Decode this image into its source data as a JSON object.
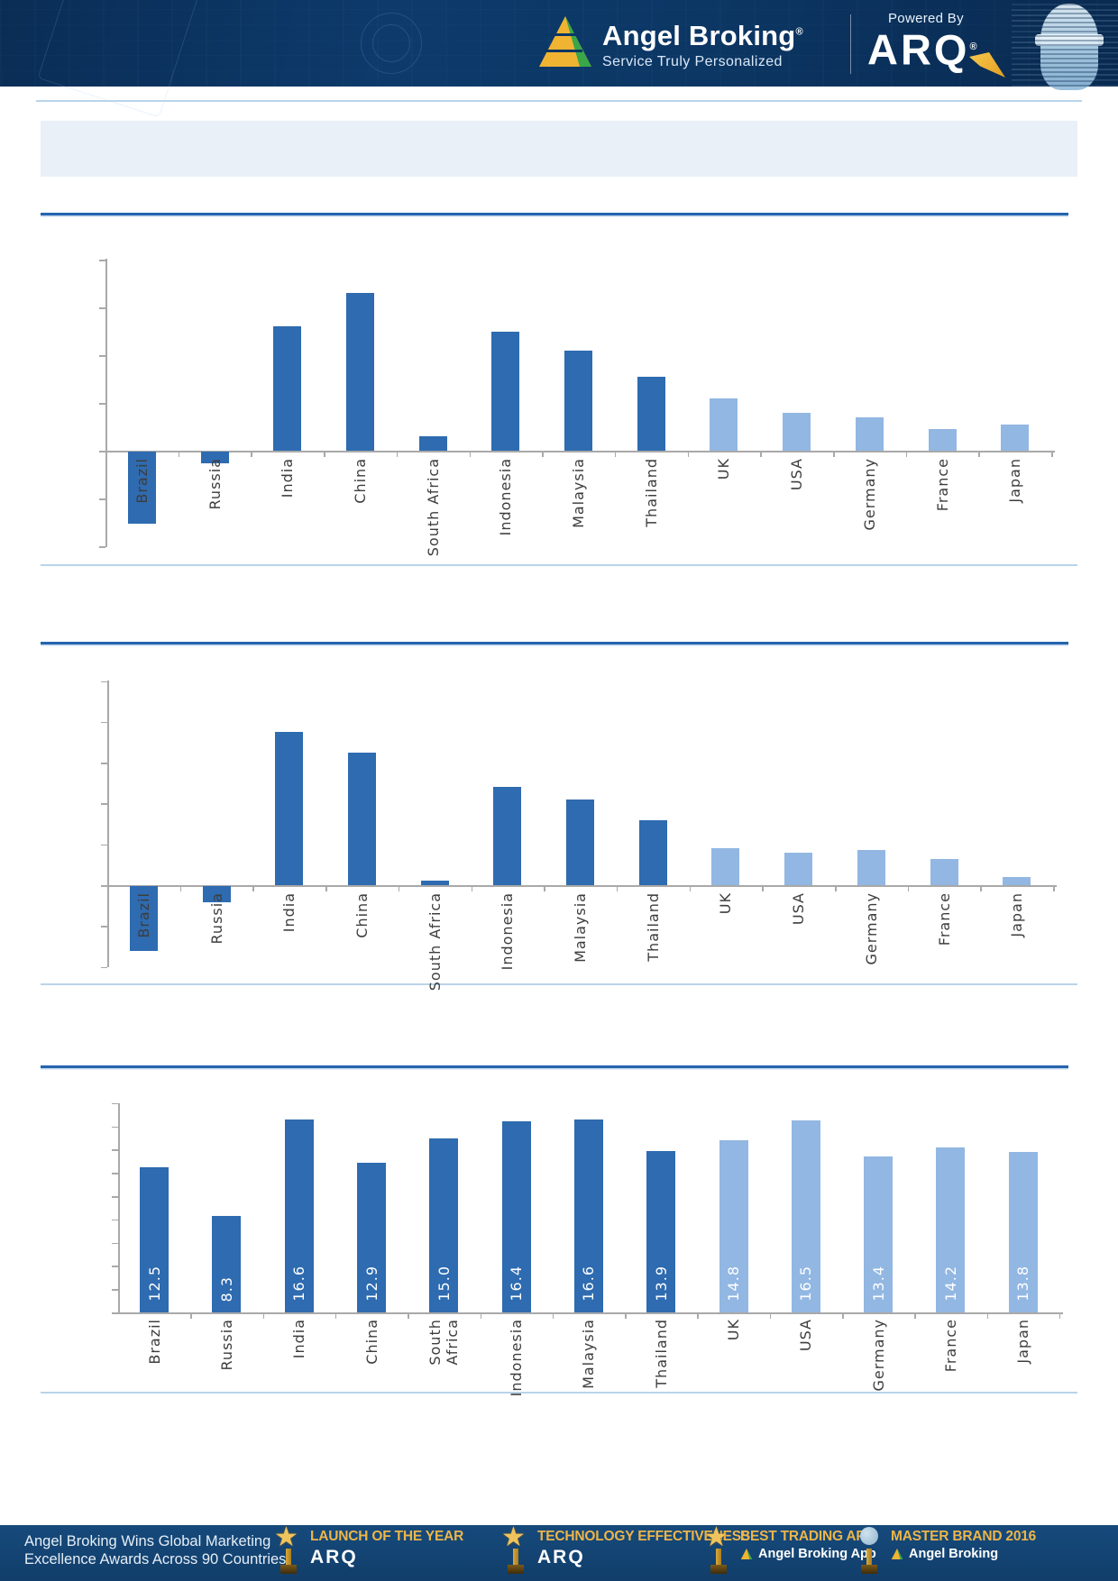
{
  "header": {
    "brand": "Angel Broking",
    "brand_registered": "®",
    "tagline": "Service Truly Personalized",
    "powered_by": "Powered By",
    "arq": "ARQ",
    "arq_registered": "®",
    "background_color": "#0c3765"
  },
  "title_bar": {
    "text": ""
  },
  "chart_data": [
    {
      "type": "bar",
      "title": "",
      "categories": [
        "Brazil",
        "Russia",
        "India",
        "China",
        "South Africa",
        "Indonesia",
        "Malaysia",
        "Thailand",
        "UK",
        "USA",
        "Germany",
        "France",
        "Japan"
      ],
      "values": [
        -1.5,
        -0.25,
        2.6,
        3.3,
        0.3,
        2.5,
        2.1,
        1.55,
        1.1,
        0.8,
        0.7,
        0.45,
        0.55
      ],
      "value_labels_text": [],
      "note": "y-axis shows tick marks only (no numeric labels); values estimated in gridline units",
      "ylim": [
        -2,
        4
      ],
      "grid_step": 1,
      "bar_color_dark": "#2e6bb0",
      "bar_color_light": "#92b7e2",
      "light_from_index": 8,
      "xlabel": "",
      "ylabel": "",
      "legend": false
    },
    {
      "type": "bar",
      "title": "",
      "categories": [
        "Brazil",
        "Russia",
        "India",
        "China",
        "South Africa",
        "Indonesia",
        "Malaysia",
        "Thailand",
        "UK",
        "USA",
        "Germany",
        "France",
        "Japan"
      ],
      "values": [
        -1.6,
        -0.4,
        3.75,
        3.25,
        0.1,
        2.4,
        2.1,
        1.6,
        0.9,
        0.8,
        0.85,
        0.65,
        0.2
      ],
      "value_labels_text": [],
      "note": "y-axis shows tick marks only (no numeric labels); values estimated in gridline units",
      "ylim": [
        -2,
        5
      ],
      "grid_step": 1,
      "bar_color_dark": "#2e6bb0",
      "bar_color_light": "#92b7e2",
      "light_from_index": 8,
      "xlabel": "",
      "ylabel": "",
      "legend": false
    },
    {
      "type": "bar",
      "title": "",
      "categories": [
        "Brazil",
        "Russia",
        "India",
        "China",
        "South\nAfrica",
        "Indonesia",
        "Malaysia",
        "Thailand",
        "UK",
        "USA",
        "Germany",
        "France",
        "Japan"
      ],
      "values": [
        12.5,
        8.3,
        16.6,
        12.9,
        15.0,
        16.4,
        16.6,
        13.9,
        14.8,
        16.5,
        13.4,
        14.2,
        13.8
      ],
      "value_labels_text": [
        "12.5",
        "8.3",
        "16.6",
        "12.9",
        "15.0",
        "16.4",
        "16.6",
        "13.9",
        "14.8",
        "16.5",
        "13.4",
        "14.2",
        "13.8"
      ],
      "note": "values printed vertically in white inside each bar; y-axis ticks unlabeled",
      "ylim": [
        0,
        18
      ],
      "grid_step": 2,
      "bar_color_dark": "#2e6bb0",
      "bar_color_light": "#92b7e2",
      "light_from_index": 8,
      "xlabel": "",
      "ylabel": "",
      "legend": false
    }
  ],
  "footer": {
    "headline_line1": "Angel Broking Wins Global Marketing",
    "headline_line2": "Excellence Awards Across 90 Countries",
    "accent_gold": "#ecb549",
    "awards": [
      {
        "icon": "star-trophy-icon",
        "title": "LAUNCH OF THE YEAR",
        "subtitle": "ARQ"
      },
      {
        "icon": "star-trophy-icon",
        "title": "TECHNOLOGY EFFECTIVENESS",
        "subtitle": "ARQ"
      },
      {
        "icon": "star-trophy-icon",
        "title": "BEST TRADING APP",
        "subtitle": "Angel Broking App"
      },
      {
        "icon": "globe-trophy-icon",
        "title": "MASTER BRAND 2016",
        "subtitle": "Angel Broking"
      }
    ]
  }
}
